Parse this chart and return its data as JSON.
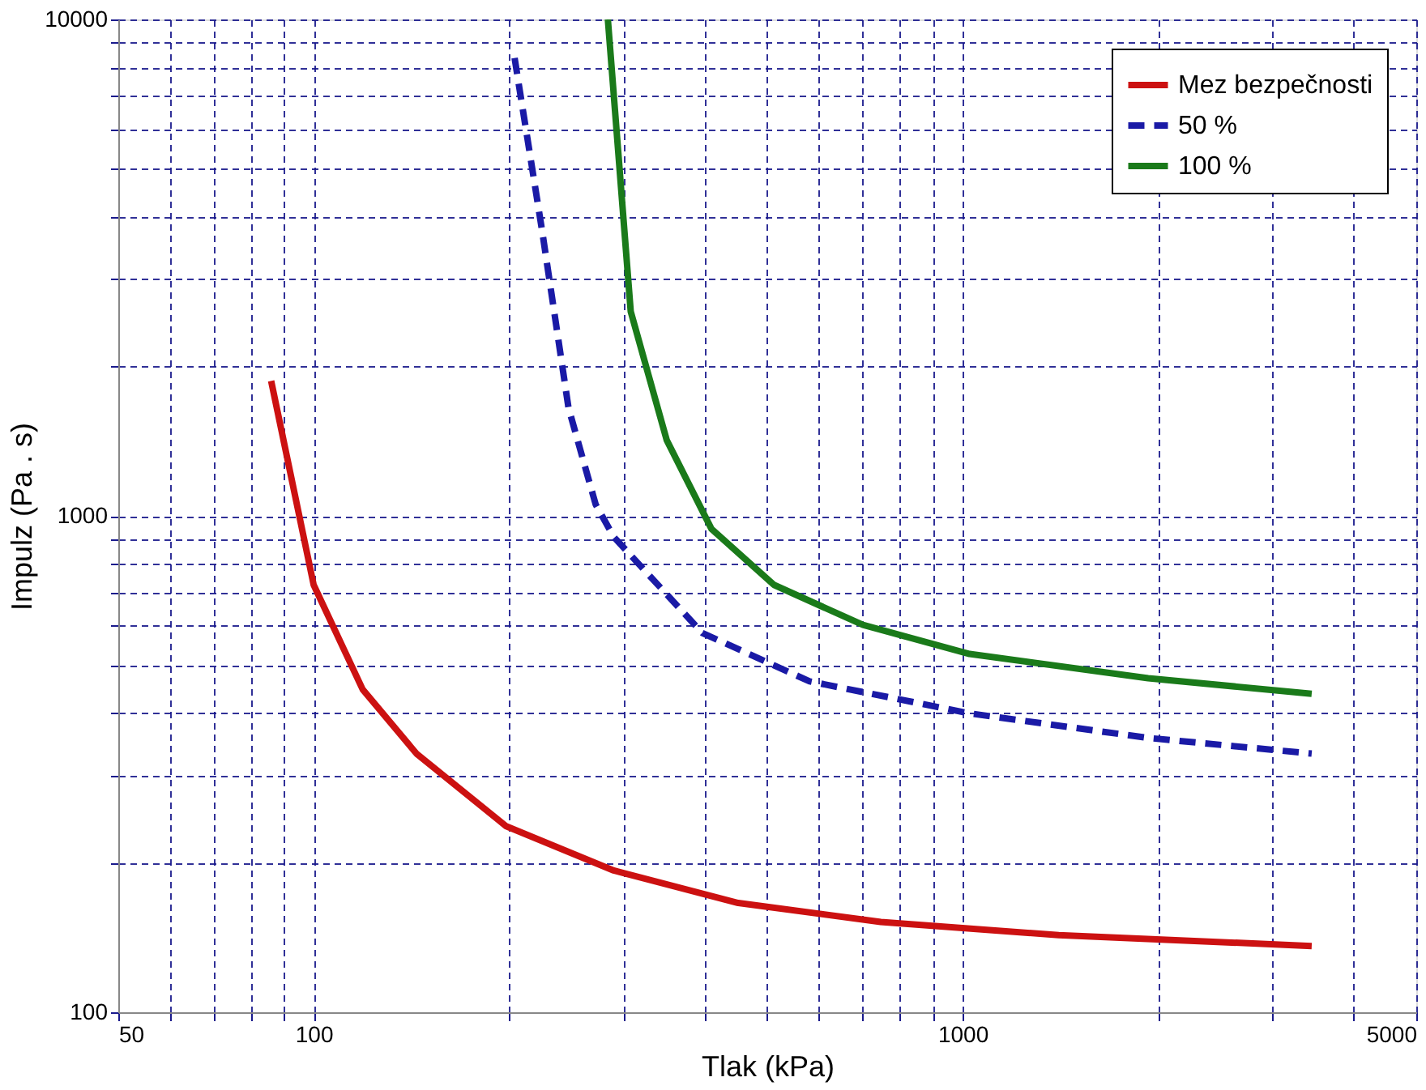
{
  "chart_data": {
    "type": "line",
    "xlabel": "Tlak (kPa)",
    "ylabel": "Impulz (Pa . s)",
    "log": "xy",
    "grid": true,
    "legend": "top right",
    "xlim": [
      50,
      5000
    ],
    "ylim": [
      100,
      10000
    ],
    "xticks": [
      50,
      {
        "value": 60,
        "label": null
      },
      {
        "value": 70,
        "label": null
      },
      {
        "value": 80,
        "label": null
      },
      {
        "value": 90,
        "label": null
      },
      100,
      {
        "value": 200,
        "label": null
      },
      {
        "value": 300,
        "label": null
      },
      {
        "value": 400,
        "label": null
      },
      {
        "value": 500,
        "label": null
      },
      {
        "value": 600,
        "label": null
      },
      {
        "value": 700,
        "label": null
      },
      {
        "value": 800,
        "label": null
      },
      {
        "value": 900,
        "label": null
      },
      1000,
      {
        "value": 2000,
        "label": null
      },
      {
        "value": 3000,
        "label": null
      },
      {
        "value": 4000,
        "label": null
      },
      5000
    ],
    "yticks": [
      100,
      {
        "value": 200,
        "label": null
      },
      {
        "value": 300,
        "label": null
      },
      {
        "value": 400,
        "label": null
      },
      {
        "value": 500,
        "label": null
      },
      {
        "value": 600,
        "label": null
      },
      {
        "value": 700,
        "label": null
      },
      {
        "value": 800,
        "label": null
      },
      {
        "value": 900,
        "label": null
      },
      1000,
      {
        "value": 2000,
        "label": null
      },
      {
        "value": 3000,
        "label": null
      },
      {
        "value": 4000,
        "label": null
      },
      {
        "value": 5000,
        "label": null
      },
      {
        "value": 6000,
        "label": null
      },
      {
        "value": 7000,
        "label": null
      },
      {
        "value": 8000,
        "label": null
      },
      {
        "value": 9000,
        "label": null
      },
      10000
    ],
    "series": [
      {
        "name": "Mez bezpečnosti",
        "color": "#cc1111",
        "line_style": "solid",
        "x": [
          86,
          100,
          119,
          144,
          198,
          290,
          451,
          748,
          1406,
          3450
        ],
        "values": [
          1870,
          726,
          447,
          332,
          237,
          193,
          166,
          152,
          143,
          136
        ]
      },
      {
        "name": "50 %",
        "color": "#1a1aa6",
        "line_style": "dashed",
        "x": [
          204,
          225,
          247,
          272,
          290,
          397,
          581,
          1025,
          1931,
          3450
        ],
        "values": [
          8360,
          3740,
          1650,
          1054,
          907,
          581,
          464,
          400,
          357,
          332
        ]
      },
      {
        "name": "100 %",
        "color": "#1a7a1a",
        "line_style": "solid",
        "x": [
          284,
          308,
          350,
          410,
          512,
          702,
          1025,
          1931,
          3450
        ],
        "values": [
          10000,
          2580,
          1420,
          942,
          726,
          603,
          527,
          471,
          438
        ]
      }
    ]
  }
}
